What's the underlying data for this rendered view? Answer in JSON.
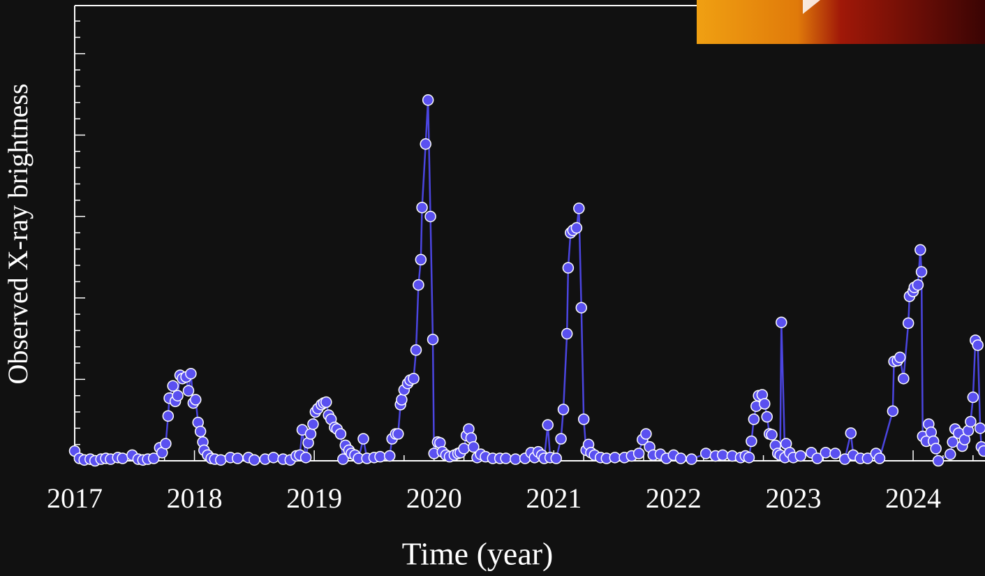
{
  "chart_data": {
    "type": "line",
    "xlabel": "Time (year)",
    "ylabel": "Observed X-ray brightness",
    "color": "#4b45e0",
    "marker_color": "#5a50f0",
    "xlim": [
      2017,
      2024.6
    ],
    "xticks": [
      2017,
      2018,
      2019,
      2020,
      2021,
      2022,
      2023,
      2024
    ],
    "xticks_minor": [
      2017.25,
      2017.5,
      2017.75,
      2018.25,
      2018.5,
      2018.75,
      2019.25,
      2019.5,
      2019.75,
      2020.25,
      2020.5,
      2020.75,
      2021.25,
      2021.5,
      2021.75,
      2022.25,
      2022.5,
      2022.75,
      2023.25,
      2023.5,
      2023.75,
      2024.25,
      2024.5
    ],
    "ylim": [
      0,
      5.59
    ],
    "yticks": [
      0,
      1,
      2,
      3,
      4,
      5
    ],
    "yticks_minor": [
      0.2,
      0.4,
      0.6,
      0.8,
      1.2,
      1.4,
      1.6,
      1.8,
      2.2,
      2.4,
      2.6,
      2.8,
      3.2,
      3.4,
      3.6,
      3.8,
      4.2,
      4.4,
      4.6,
      4.8,
      5.2,
      5.4
    ],
    "x": [
      2017.0,
      2017.04,
      2017.08,
      2017.13,
      2017.17,
      2017.22,
      2017.26,
      2017.3,
      2017.36,
      2017.4,
      2017.48,
      2017.53,
      2017.57,
      2017.61,
      2017.66,
      2017.71,
      2017.73,
      2017.76,
      2017.78,
      2017.79,
      2017.82,
      2017.84,
      2017.86,
      2017.88,
      2017.9,
      2017.93,
      2017.95,
      2017.97,
      2017.99,
      2018.01,
      2018.03,
      2018.05,
      2018.07,
      2018.08,
      2018.11,
      2018.14,
      2018.17,
      2018.22,
      2018.3,
      2018.36,
      2018.45,
      2018.5,
      2018.59,
      2018.66,
      2018.74,
      2018.8,
      2018.85,
      2018.88,
      2018.9,
      2018.93,
      2018.95,
      2018.97,
      2018.99,
      2019.01,
      2019.03,
      2019.06,
      2019.08,
      2019.1,
      2019.12,
      2019.14,
      2019.17,
      2019.19,
      2019.22,
      2019.24,
      2019.26,
      2019.29,
      2019.31,
      2019.34,
      2019.37,
      2019.41,
      2019.44,
      2019.5,
      2019.55,
      2019.63,
      2019.65,
      2019.68,
      2019.7,
      2019.72,
      2019.73,
      2019.75,
      2019.78,
      2019.8,
      2019.83,
      2019.85,
      2019.87,
      2019.89,
      2019.9,
      2019.93,
      2019.95,
      2019.97,
      2019.99,
      2020.0,
      2020.03,
      2020.05,
      2020.07,
      2020.1,
      2020.13,
      2020.17,
      2020.2,
      2020.22,
      2020.25,
      2020.27,
      2020.29,
      2020.31,
      2020.33,
      2020.36,
      2020.39,
      2020.43,
      2020.49,
      2020.55,
      2020.6,
      2020.68,
      2020.76,
      2020.81,
      2020.84,
      2020.87,
      2020.9,
      2020.92,
      2020.95,
      2020.97,
      2021.02,
      2021.06,
      2021.08,
      2021.11,
      2021.12,
      2021.14,
      2021.16,
      2021.19,
      2021.21,
      2021.23,
      2021.25,
      2021.27,
      2021.29,
      2021.31,
      2021.34,
      2021.39,
      2021.44,
      2021.51,
      2021.59,
      2021.65,
      2021.71,
      2021.74,
      2021.77,
      2021.8,
      2021.83,
      2021.89,
      2021.94,
      2022.0,
      2022.06,
      2022.15,
      2022.27,
      2022.35,
      2022.41,
      2022.49,
      2022.56,
      2022.6,
      2022.63,
      2022.65,
      2022.67,
      2022.69,
      2022.71,
      2022.74,
      2022.76,
      2022.78,
      2022.8,
      2022.82,
      2022.85,
      2022.87,
      2022.89,
      2022.9,
      2022.93,
      2022.94,
      2022.97,
      2023.0,
      2023.06,
      2023.15,
      2023.2,
      2023.27,
      2023.35,
      2023.43,
      2023.48,
      2023.5,
      2023.56,
      2023.62,
      2023.69,
      2023.72,
      2023.83,
      2023.84,
      2023.87,
      2023.89,
      2023.92,
      2023.96,
      2023.97,
      2024.0,
      2024.01,
      2024.04,
      2024.06,
      2024.07,
      2024.08,
      2024.11,
      2024.13,
      2024.15,
      2024.17,
      2024.19,
      2024.21,
      2024.31,
      2024.33,
      2024.35,
      2024.38,
      2024.41,
      2024.43,
      2024.46,
      2024.48,
      2024.5,
      2024.52,
      2024.54,
      2024.56,
      2024.57,
      2024.59
    ],
    "values": [
      0.12,
      0.03,
      0.01,
      0.02,
      0.0,
      0.02,
      0.03,
      0.02,
      0.04,
      0.03,
      0.07,
      0.02,
      0.01,
      0.02,
      0.03,
      0.16,
      0.1,
      0.21,
      0.55,
      0.77,
      0.92,
      0.73,
      0.8,
      1.05,
      1.01,
      1.03,
      0.86,
      1.07,
      0.71,
      0.75,
      0.47,
      0.36,
      0.23,
      0.13,
      0.07,
      0.03,
      0.02,
      0.01,
      0.04,
      0.03,
      0.04,
      0.01,
      0.02,
      0.04,
      0.02,
      0.01,
      0.06,
      0.07,
      0.38,
      0.04,
      0.22,
      0.33,
      0.45,
      0.6,
      0.64,
      0.69,
      0.71,
      0.72,
      0.56,
      0.51,
      0.41,
      0.39,
      0.33,
      0.02,
      0.19,
      0.13,
      0.09,
      0.07,
      0.03,
      0.27,
      0.03,
      0.04,
      0.05,
      0.06,
      0.27,
      0.33,
      0.33,
      0.69,
      0.75,
      0.87,
      0.95,
      0.99,
      1.01,
      1.36,
      2.16,
      2.47,
      3.11,
      3.89,
      4.43,
      3.0,
      1.49,
      0.09,
      0.23,
      0.22,
      0.11,
      0.07,
      0.05,
      0.07,
      0.09,
      0.1,
      0.15,
      0.31,
      0.39,
      0.28,
      0.17,
      0.04,
      0.08,
      0.05,
      0.03,
      0.03,
      0.03,
      0.02,
      0.03,
      0.1,
      0.04,
      0.11,
      0.07,
      0.03,
      0.44,
      0.04,
      0.03,
      0.27,
      0.63,
      1.56,
      2.37,
      2.8,
      2.83,
      2.86,
      3.1,
      1.88,
      0.51,
      0.13,
      0.2,
      0.1,
      0.07,
      0.04,
      0.03,
      0.04,
      0.04,
      0.06,
      0.09,
      0.26,
      0.33,
      0.17,
      0.07,
      0.08,
      0.03,
      0.07,
      0.03,
      0.02,
      0.09,
      0.06,
      0.07,
      0.06,
      0.04,
      0.06,
      0.04,
      0.24,
      0.51,
      0.67,
      0.8,
      0.81,
      0.7,
      0.54,
      0.33,
      0.32,
      0.19,
      0.09,
      0.07,
      1.7,
      0.04,
      0.21,
      0.1,
      0.04,
      0.06,
      0.1,
      0.03,
      0.1,
      0.09,
      0.02,
      0.34,
      0.07,
      0.03,
      0.03,
      0.09,
      0.03,
      0.61,
      1.22,
      1.23,
      1.27,
      1.01,
      1.69,
      2.02,
      2.08,
      2.13,
      2.16,
      2.59,
      2.32,
      0.3,
      0.24,
      0.45,
      0.35,
      0.24,
      0.15,
      0.0,
      0.08,
      0.23,
      0.39,
      0.34,
      0.18,
      0.26,
      0.37,
      0.48,
      0.78,
      1.48,
      1.42,
      0.4,
      0.17,
      0.12
    ]
  }
}
